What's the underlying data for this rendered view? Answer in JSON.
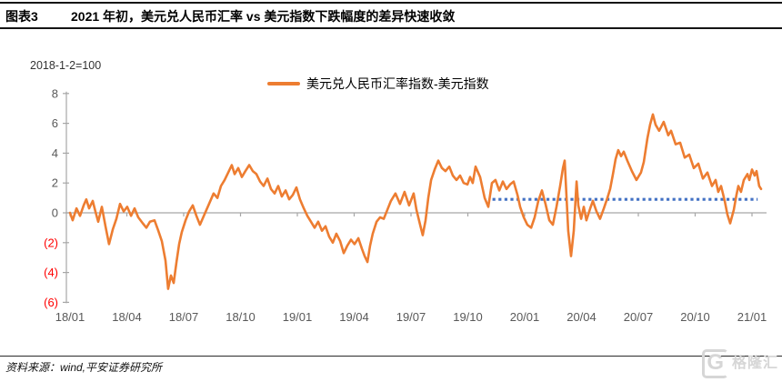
{
  "header": {
    "figure_label": "图表3",
    "title": "2021 年初，美元兑人民币汇率 vs 美元指数下跌幅度的差异快速收敛"
  },
  "chart": {
    "axis_note": "2018-1-2=100",
    "legend_label": "美元兑人民币汇率指数-美元指数"
  },
  "footer": {
    "source": "资料来源：wind,平安证券研究所",
    "watermark_logo": "G",
    "watermark_text": "格隆汇"
  },
  "colors": {
    "series_orange": "#ED7D31",
    "reference_blue": "#4472C4",
    "axis_gray": "#A6A6A6",
    "tick_label_gray": "#595959",
    "negative_label_red": "#FF0000"
  },
  "chart_data": {
    "type": "line",
    "title": "2021 年初，美元兑人民币汇率 vs 美元指数下跌幅度的差异快速收敛",
    "base_note": "2018-1-2=100",
    "x_unit": "months since 18/01",
    "x_tick_labels": [
      "18/01",
      "18/04",
      "18/07",
      "18/10",
      "19/01",
      "19/04",
      "19/07",
      "19/10",
      "20/01",
      "20/04",
      "20/07",
      "20/10",
      "21/01"
    ],
    "ylim": [
      -6,
      8
    ],
    "ytick_values": [
      8,
      6,
      4,
      2,
      0,
      -2,
      -4,
      -6
    ],
    "ytick_labels": [
      "8",
      "6",
      "4",
      "2",
      "0",
      "(2)",
      "(4)",
      "(6)"
    ],
    "legend_position": "top-center",
    "grid": false,
    "series": [
      {
        "name": "美元兑人民币汇率指数-美元指数",
        "color": "#ED7D31",
        "line_style": "solid",
        "points": [
          [
            0,
            0
          ],
          [
            0.14,
            -0.5
          ],
          [
            0.34,
            0.3
          ],
          [
            0.53,
            -0.2
          ],
          [
            0.72,
            0.5
          ],
          [
            0.86,
            0.9
          ],
          [
            1.01,
            0.3
          ],
          [
            1.2,
            0.8
          ],
          [
            1.34,
            0.1
          ],
          [
            1.49,
            -0.6
          ],
          [
            1.68,
            0.4
          ],
          [
            1.87,
            -0.9
          ],
          [
            2.06,
            -2.1
          ],
          [
            2.26,
            -1.1
          ],
          [
            2.45,
            -0.4
          ],
          [
            2.64,
            0.6
          ],
          [
            2.83,
            0.1
          ],
          [
            3.02,
            0.4
          ],
          [
            3.22,
            -0.2
          ],
          [
            3.41,
            0.3
          ],
          [
            3.6,
            -0.3
          ],
          [
            3.84,
            -0.7
          ],
          [
            4.03,
            -1
          ],
          [
            4.22,
            -0.6
          ],
          [
            4.46,
            -0.5
          ],
          [
            4.66,
            -1.2
          ],
          [
            4.85,
            -1.9
          ],
          [
            5.04,
            -3.2
          ],
          [
            5.18,
            -5.1
          ],
          [
            5.33,
            -4.2
          ],
          [
            5.47,
            -4.7
          ],
          [
            5.62,
            -3.3
          ],
          [
            5.76,
            -2.1
          ],
          [
            5.9,
            -1.3
          ],
          [
            6.1,
            -0.5
          ],
          [
            6.29,
            0.1
          ],
          [
            6.48,
            0.5
          ],
          [
            6.67,
            -0.2
          ],
          [
            6.86,
            -0.8
          ],
          [
            7.1,
            -0.1
          ],
          [
            7.34,
            0.6
          ],
          [
            7.58,
            1.3
          ],
          [
            7.78,
            1
          ],
          [
            7.97,
            1.8
          ],
          [
            8.16,
            2.2
          ],
          [
            8.35,
            2.7
          ],
          [
            8.54,
            3.2
          ],
          [
            8.69,
            2.6
          ],
          [
            8.88,
            3
          ],
          [
            9.07,
            2.4
          ],
          [
            9.26,
            2.8
          ],
          [
            9.46,
            3.2
          ],
          [
            9.65,
            2.8
          ],
          [
            9.84,
            2.6
          ],
          [
            10.03,
            2.1
          ],
          [
            10.22,
            1.8
          ],
          [
            10.42,
            2.3
          ],
          [
            10.61,
            1.6
          ],
          [
            10.8,
            1.3
          ],
          [
            10.99,
            1.8
          ],
          [
            11.18,
            1.1
          ],
          [
            11.38,
            1.5
          ],
          [
            11.57,
            0.9
          ],
          [
            11.76,
            1.2
          ],
          [
            11.95,
            1.7
          ],
          [
            12.14,
            0.9
          ],
          [
            12.34,
            0.3
          ],
          [
            12.53,
            -0.2
          ],
          [
            12.72,
            -0.6
          ],
          [
            12.91,
            -1
          ],
          [
            13.1,
            -0.6
          ],
          [
            13.3,
            -1.2
          ],
          [
            13.49,
            -0.9
          ],
          [
            13.68,
            -1.6
          ],
          [
            13.87,
            -2
          ],
          [
            14.06,
            -1.4
          ],
          [
            14.26,
            -1.9
          ],
          [
            14.45,
            -2.7
          ],
          [
            14.64,
            -2.2
          ],
          [
            14.83,
            -1.8
          ],
          [
            15.02,
            -2.1
          ],
          [
            15.22,
            -1.7
          ],
          [
            15.41,
            -2.4
          ],
          [
            15.55,
            -2.9
          ],
          [
            15.7,
            -3.3
          ],
          [
            15.84,
            -2.2
          ],
          [
            15.98,
            -1.4
          ],
          [
            16.18,
            -0.6
          ],
          [
            16.37,
            -0.3
          ],
          [
            16.56,
            -0.4
          ],
          [
            16.75,
            0.2
          ],
          [
            16.94,
            0.8
          ],
          [
            17.18,
            1.3
          ],
          [
            17.42,
            0.6
          ],
          [
            17.66,
            1.4
          ],
          [
            17.9,
            0.5
          ],
          [
            18.14,
            1.3
          ],
          [
            18.29,
            0.2
          ],
          [
            18.48,
            -0.8
          ],
          [
            18.62,
            -1.5
          ],
          [
            18.77,
            -0.5
          ],
          [
            18.91,
            1
          ],
          [
            19.06,
            2.2
          ],
          [
            19.25,
            2.9
          ],
          [
            19.44,
            3.5
          ],
          [
            19.63,
            3
          ],
          [
            19.82,
            2.8
          ],
          [
            20.02,
            3.1
          ],
          [
            20.21,
            2.5
          ],
          [
            20.4,
            2.2
          ],
          [
            20.59,
            2.5
          ],
          [
            20.78,
            2
          ],
          [
            20.98,
            1.9
          ],
          [
            21.12,
            2.4
          ],
          [
            21.26,
            2
          ],
          [
            21.41,
            3.1
          ],
          [
            21.65,
            2.4
          ],
          [
            21.89,
            1
          ],
          [
            22.08,
            0.4
          ],
          [
            22.27,
            2
          ],
          [
            22.46,
            2.2
          ],
          [
            22.66,
            1.5
          ],
          [
            22.85,
            2.1
          ],
          [
            23.04,
            1.6
          ],
          [
            23.23,
            1.9
          ],
          [
            23.42,
            2.1
          ],
          [
            23.62,
            1.2
          ],
          [
            23.76,
            0.4
          ],
          [
            23.95,
            -0.3
          ],
          [
            24.14,
            -0.8
          ],
          [
            24.34,
            -1
          ],
          [
            24.53,
            -0.3
          ],
          [
            24.72,
            0.8
          ],
          [
            24.91,
            1.5
          ],
          [
            25.1,
            0.6
          ],
          [
            25.3,
            -0.5
          ],
          [
            25.49,
            -0.8
          ],
          [
            25.68,
            0.4
          ],
          [
            25.87,
            1.8
          ],
          [
            26.02,
            3
          ],
          [
            26.11,
            3.5
          ],
          [
            26.3,
            -1.2
          ],
          [
            26.45,
            -2.9
          ],
          [
            26.59,
            -1.2
          ],
          [
            26.74,
            2.1
          ],
          [
            26.83,
            0.5
          ],
          [
            26.98,
            -0.4
          ],
          [
            27.12,
            0.4
          ],
          [
            27.26,
            -0.5
          ],
          [
            27.46,
            0.3
          ],
          [
            27.6,
            0.8
          ],
          [
            27.79,
            0.1
          ],
          [
            27.98,
            -0.4
          ],
          [
            28.18,
            0.3
          ],
          [
            28.37,
            1
          ],
          [
            28.51,
            1.6
          ],
          [
            28.66,
            2.6
          ],
          [
            28.8,
            3.6
          ],
          [
            28.94,
            4.2
          ],
          [
            29.09,
            3.8
          ],
          [
            29.23,
            4.1
          ],
          [
            29.42,
            3.5
          ],
          [
            29.66,
            2.8
          ],
          [
            29.9,
            2.2
          ],
          [
            30.14,
            2.7
          ],
          [
            30.29,
            3.4
          ],
          [
            30.48,
            5
          ],
          [
            30.62,
            5.9
          ],
          [
            30.77,
            6.6
          ],
          [
            30.91,
            5.9
          ],
          [
            31.1,
            5.5
          ],
          [
            31.34,
            6.1
          ],
          [
            31.58,
            5.2
          ],
          [
            31.73,
            5.5
          ],
          [
            31.97,
            4.6
          ],
          [
            32.21,
            4.7
          ],
          [
            32.45,
            3.7
          ],
          [
            32.69,
            3.9
          ],
          [
            32.93,
            3
          ],
          [
            33.17,
            3.3
          ],
          [
            33.41,
            2.3
          ],
          [
            33.65,
            2.7
          ],
          [
            33.89,
            1.8
          ],
          [
            34.08,
            2.2
          ],
          [
            34.22,
            1.4
          ],
          [
            34.37,
            1.8
          ],
          [
            34.56,
            0.8
          ],
          [
            34.7,
            -0.1
          ],
          [
            34.85,
            -0.7
          ],
          [
            35.04,
            0.2
          ],
          [
            35.18,
            1.2
          ],
          [
            35.28,
            1.8
          ],
          [
            35.42,
            1.4
          ],
          [
            35.57,
            2.2
          ],
          [
            35.76,
            2.6
          ],
          [
            35.86,
            2.2
          ],
          [
            36,
            2.9
          ],
          [
            36.14,
            2.5
          ],
          [
            36.24,
            2.8
          ],
          [
            36.38,
            1.8
          ],
          [
            36.48,
            1.6
          ]
        ]
      },
      {
        "name": "reference-dotted-line",
        "color": "#4472C4",
        "line_style": "dotted",
        "points": [
          [
            22.3,
            0.9
          ],
          [
            36.3,
            0.9
          ]
        ]
      }
    ]
  }
}
